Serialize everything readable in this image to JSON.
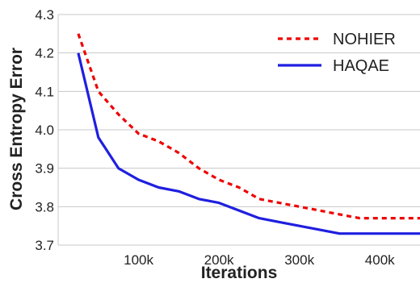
{
  "chart_data": {
    "type": "line",
    "title": "",
    "xlabel": "Iterations",
    "ylabel": "Cross Entropy Error",
    "xlim": [
      0,
      450000
    ],
    "ylim": [
      3.7,
      4.3
    ],
    "x_ticks": [
      100000,
      200000,
      300000,
      400000
    ],
    "x_tick_labels": [
      "100k",
      "200k",
      "300k",
      "400k"
    ],
    "y_ticks": [
      3.7,
      3.8,
      3.9,
      4.0,
      4.1,
      4.2,
      4.3
    ],
    "y_tick_labels": [
      "3.7",
      "3.8",
      "3.9",
      "4.0",
      "4.1",
      "4.2",
      "4.3"
    ],
    "grid": "horizontal",
    "legend_position": "top-right",
    "series": [
      {
        "name": "NOHIER",
        "color": "#ee0000",
        "style": "dotted",
        "x": [
          25000,
          50000,
          75000,
          100000,
          125000,
          150000,
          175000,
          200000,
          225000,
          250000,
          275000,
          300000,
          325000,
          350000,
          375000,
          400000,
          425000,
          450000
        ],
        "y": [
          4.25,
          4.1,
          4.04,
          3.99,
          3.97,
          3.94,
          3.9,
          3.87,
          3.85,
          3.82,
          3.81,
          3.8,
          3.79,
          3.78,
          3.77,
          3.77,
          3.77,
          3.77
        ]
      },
      {
        "name": "HAQAE",
        "color": "#1f1fe0",
        "style": "solid",
        "x": [
          25000,
          50000,
          75000,
          100000,
          125000,
          150000,
          175000,
          200000,
          225000,
          250000,
          275000,
          300000,
          325000,
          350000,
          375000,
          400000,
          425000,
          450000
        ],
        "y": [
          4.2,
          3.98,
          3.9,
          3.87,
          3.85,
          3.84,
          3.82,
          3.81,
          3.79,
          3.77,
          3.76,
          3.75,
          3.74,
          3.73,
          3.73,
          3.73,
          3.73,
          3.73
        ]
      }
    ]
  }
}
